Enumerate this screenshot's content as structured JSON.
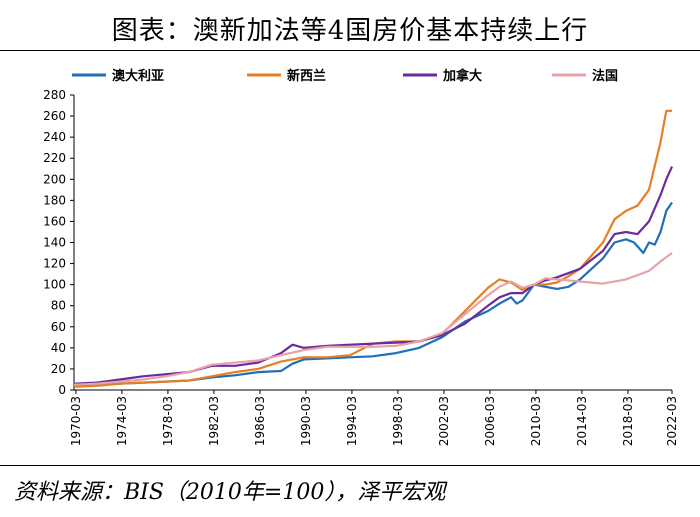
{
  "title": "图表：澳新加法等4国房价基本持续上行",
  "source": "资料来源：BIS（2010年=100），泽平宏观",
  "chart_data": {
    "type": "line",
    "title": "图表：澳新加法等4国房价基本持续上行",
    "xlabel": "",
    "ylabel": "",
    "ylim": [
      0,
      280
    ],
    "yticks": [
      0,
      20,
      40,
      60,
      80,
      100,
      120,
      140,
      160,
      180,
      200,
      220,
      240,
      260,
      280
    ],
    "xlim": [
      1970.0,
      2022.0
    ],
    "xticks": [
      "1970-03",
      "1974-03",
      "1978-03",
      "1982-03",
      "1986-03",
      "1990-03",
      "1994-03",
      "1998-03",
      "2002-03",
      "2006-03",
      "2010-03",
      "2014-03",
      "2018-03",
      "2022-03"
    ],
    "grid": false,
    "legend_position": "top",
    "series": [
      {
        "name": "澳大利亚",
        "color": "#1f6fb8",
        "x": [
          1970,
          1972,
          1974,
          1976,
          1978,
          1980,
          1982,
          1984,
          1986,
          1988,
          1989,
          1990,
          1992,
          1994,
          1996,
          1998,
          2000,
          2002,
          2004,
          2006,
          2007,
          2008,
          2008.5,
          2009,
          2010,
          2011,
          2012,
          2013,
          2014,
          2016,
          2017,
          2018,
          2018.7,
          2019.5,
          2020,
          2020.5,
          2021,
          2021.5,
          2022
        ],
        "y": [
          4,
          5,
          6,
          7,
          8,
          9,
          12,
          14,
          17,
          18,
          25,
          29,
          30,
          31,
          32,
          35,
          40,
          50,
          65,
          75,
          82,
          88,
          82,
          85,
          100,
          98,
          96,
          98,
          105,
          125,
          140,
          143,
          140,
          130,
          140,
          138,
          150,
          170,
          178
        ]
      },
      {
        "name": "新西兰",
        "color": "#e67e22",
        "x": [
          1970,
          1972,
          1974,
          1976,
          1978,
          1980,
          1982,
          1984,
          1986,
          1988,
          1990,
          1992,
          1994,
          1996,
          1998,
          2000,
          2002,
          2004,
          2006,
          2007,
          2008,
          2009,
          2010,
          2011,
          2012,
          2013,
          2014,
          2016,
          2017,
          2018,
          2019,
          2020,
          2021,
          2021.5,
          2022
        ],
        "y": [
          3,
          4,
          6,
          7,
          8,
          9,
          13,
          17,
          20,
          27,
          31,
          31,
          33,
          44,
          46,
          46,
          53,
          75,
          97,
          105,
          102,
          95,
          100,
          100,
          102,
          108,
          115,
          140,
          162,
          170,
          175,
          190,
          235,
          265,
          265
        ]
      },
      {
        "name": "加拿大",
        "color": "#6a2ba0",
        "x": [
          1970,
          1972,
          1974,
          1976,
          1978,
          1980,
          1982,
          1984,
          1986,
          1988,
          1989,
          1990,
          1992,
          1994,
          1996,
          1998,
          2000,
          2002,
          2004,
          2006,
          2007,
          2008,
          2009,
          2010,
          2011,
          2012,
          2014,
          2016,
          2017,
          2018,
          2019,
          2020,
          2021,
          2021.5,
          2022
        ],
        "y": [
          6,
          7,
          10,
          13,
          15,
          17,
          23,
          23,
          26,
          35,
          43,
          40,
          42,
          43,
          44,
          45,
          46,
          52,
          63,
          80,
          88,
          92,
          92,
          100,
          104,
          107,
          115,
          132,
          148,
          150,
          148,
          160,
          185,
          200,
          212
        ]
      },
      {
        "name": "法国",
        "color": "#e8a3a8",
        "x": [
          1970,
          1972,
          1974,
          1976,
          1978,
          1980,
          1982,
          1984,
          1986,
          1988,
          1990,
          1992,
          1994,
          1996,
          1998,
          2000,
          2002,
          2004,
          2006,
          2007,
          2008,
          2009,
          2010,
          2011,
          2012,
          2014,
          2016,
          2018,
          2020,
          2021,
          2022
        ],
        "y": [
          5,
          6,
          8,
          10,
          13,
          17,
          24,
          26,
          28,
          33,
          38,
          41,
          41,
          41,
          42,
          46,
          54,
          72,
          90,
          98,
          103,
          97,
          100,
          106,
          105,
          103,
          101,
          105,
          113,
          122,
          130
        ]
      }
    ]
  }
}
